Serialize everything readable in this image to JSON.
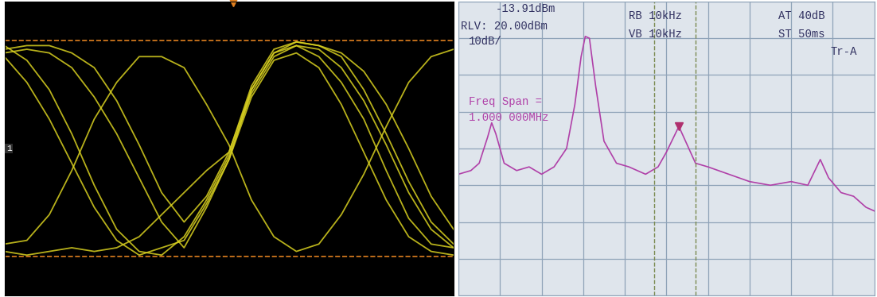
{
  "chart_data": [
    {
      "type": "line",
      "tick_labels": false,
      "grid": false,
      "xlim": [
        0,
        10
      ],
      "ylim": [
        -4,
        4
      ],
      "xticks": [
        0,
        1,
        2,
        3,
        4,
        5,
        6,
        7,
        8,
        9,
        10
      ],
      "yticks": [
        -4,
        -3,
        -2,
        -1,
        0,
        1,
        2,
        3,
        4
      ],
      "channel_label": "1",
      "cursor_levels": [
        2.93,
        -2.93
      ],
      "trigger_x": 5.1,
      "x": [
        0,
        0.5,
        1,
        1.5,
        2,
        2.5,
        3,
        3.5,
        4,
        4.5,
        5,
        5.5,
        6,
        6.5,
        7,
        7.5,
        8,
        8.5,
        9,
        9.5,
        10
      ],
      "series": [
        {
          "color": "#d8d020",
          "values": [
            2.6,
            2.7,
            2.6,
            2.2,
            1.4,
            0.4,
            -0.8,
            -2.0,
            -2.7,
            -1.6,
            -0.3,
            1.6,
            2.6,
            2.8,
            2.5,
            1.8,
            0.8,
            -0.6,
            -1.9,
            -2.6,
            -2.7
          ]
        },
        {
          "color": "#d8d020",
          "values": [
            2.8,
            2.4,
            1.6,
            0.4,
            -1.0,
            -2.2,
            -2.8,
            -2.9,
            -2.4,
            -1.4,
            -0.2,
            1.5,
            2.5,
            2.8,
            2.7,
            2.2,
            1.3,
            0.1,
            -1.2,
            -2.2,
            -2.7
          ]
        },
        {
          "color": "#d8d020",
          "values": [
            2.7,
            2.8,
            2.8,
            2.6,
            2.2,
            1.3,
            0.1,
            -1.2,
            -2.0,
            -1.3,
            -0.1,
            1.7,
            2.7,
            2.9,
            2.8,
            2.6,
            2.1,
            1.2,
            0.0,
            -1.3,
            -2.2
          ]
        },
        {
          "color": "#d8d020",
          "values": [
            -2.6,
            -2.5,
            -1.8,
            -0.6,
            0.8,
            1.8,
            2.5,
            2.5,
            2.2,
            1.2,
            0.1,
            -1.4,
            -2.4,
            -2.8,
            -2.6,
            -1.8,
            -0.7,
            0.6,
            1.8,
            2.5,
            2.7
          ]
        },
        {
          "color": "#d8d020",
          "values": [
            -2.8,
            -2.9,
            -2.8,
            -2.7,
            -2.8,
            -2.7,
            -2.4,
            -1.8,
            -1.2,
            -0.6,
            -0.1,
            1.6,
            2.6,
            2.9,
            2.8,
            2.5,
            1.6,
            0.4,
            -0.9,
            -2.0,
            -2.6
          ]
        },
        {
          "color": "#d8d020",
          "values": [
            2.5,
            1.8,
            0.8,
            -0.4,
            -1.6,
            -2.5,
            -2.9,
            -2.7,
            -2.5,
            -1.5,
            -0.3,
            1.4,
            2.4,
            2.6,
            2.2,
            1.2,
            -0.1,
            -1.4,
            -2.4,
            -2.8,
            -2.9
          ]
        }
      ]
    },
    {
      "type": "line",
      "tick_labels": false,
      "grid": true,
      "xlim": [
        0,
        10
      ],
      "ylim": [
        -60,
        20
      ],
      "xticks": [
        0,
        1,
        2,
        3,
        4,
        5,
        6,
        7,
        8,
        9,
        10
      ],
      "yticks": [
        -60,
        -50,
        -40,
        -30,
        -20,
        -10,
        0,
        10,
        20
      ],
      "annotations": [
        "-13.91dBm",
        "RLV: 20.00dBm",
        "10dB/",
        "RB 10kHz",
        "VB 10kHz",
        "AT 40dB",
        "ST 50ms",
        "Tr-A",
        "Freq Span =",
        "1.000 000MHz"
      ],
      "marker_point": {
        "x": 5.3,
        "y": -13.91
      },
      "dashed_lines_x": [
        4.7,
        5.7
      ],
      "x": [
        0,
        0.3,
        0.5,
        0.7,
        0.8,
        0.9,
        1.1,
        1.4,
        1.7,
        2.0,
        2.3,
        2.6,
        2.8,
        2.95,
        3.05,
        3.15,
        3.3,
        3.5,
        3.8,
        4.1,
        4.5,
        4.8,
        5.0,
        5.3,
        5.5,
        5.7,
        6.0,
        6.5,
        7.0,
        7.5,
        8.0,
        8.4,
        8.7,
        8.9,
        9.2,
        9.5,
        9.8,
        10
      ],
      "series": [
        {
          "color": "#b040a8",
          "values": [
            -27,
            -26,
            -24,
            -17,
            -13,
            -16,
            -24,
            -26,
            -25,
            -27,
            -25,
            -20,
            -8,
            5,
            10.5,
            10,
            -3,
            -18,
            -24,
            -25,
            -27,
            -25,
            -21,
            -14,
            -19,
            -24,
            -25,
            -27,
            -29,
            -30,
            -29,
            -30,
            -23,
            -28,
            -32,
            -33,
            -36,
            -37
          ]
        }
      ]
    }
  ]
}
